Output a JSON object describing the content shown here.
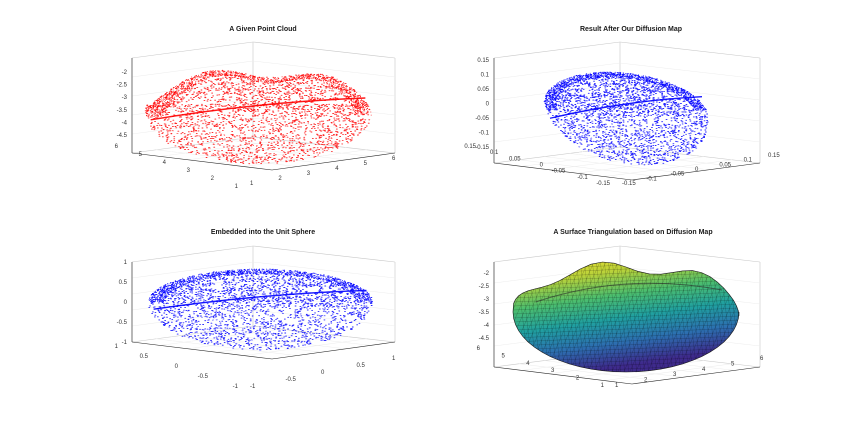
{
  "chart_data": [
    {
      "type": "scatter",
      "title": "A Given Point Cloud",
      "color": "#ff0000",
      "zticks": [
        "-2",
        "-2.5",
        "-3",
        "-3.5",
        "-4",
        "-4.5"
      ],
      "yticks": [
        "6",
        "5",
        "4",
        "3",
        "2",
        "1"
      ],
      "xticks": [
        "1",
        "2",
        "3",
        "4",
        "5",
        "6"
      ]
    },
    {
      "type": "scatter",
      "title": "Result After Our Diffusion Map",
      "color": "#0000ff",
      "zticks": [
        "0.15",
        "0.1",
        "0.05",
        "0",
        "-0.05",
        "-0.1",
        "-0.15"
      ],
      "yticks": [
        "0.15",
        "0.1",
        "0.05",
        "0",
        "-0.05",
        "-0.1",
        "-0.15"
      ],
      "xticks": [
        "-0.15",
        "-0.1",
        "-0.05",
        "0",
        "0.05",
        "0.1",
        "0.15"
      ]
    },
    {
      "type": "scatter",
      "title": "Embedded into the Unit Sphere",
      "color": "#0000ff",
      "zticks": [
        "1",
        "0.5",
        "0",
        "-0.5",
        "-1"
      ],
      "yticks": [
        "1",
        "0.5",
        "0",
        "-0.5",
        "-1"
      ],
      "xticks": [
        "-1",
        "-0.5",
        "0",
        "0.5",
        "1"
      ]
    },
    {
      "type": "surface",
      "title": "A Surface Triangulation based on Diffusion Map",
      "colormap": [
        "#3e2a8c",
        "#2c6fb0",
        "#20a0a0",
        "#4cbe6e",
        "#b9d23a",
        "#f2e030"
      ],
      "zticks": [
        "-2",
        "-2.5",
        "-3",
        "-3.5",
        "-4",
        "-4.5"
      ],
      "yticks": [
        "6",
        "5",
        "4",
        "3",
        "2",
        "1"
      ],
      "xticks": [
        "1",
        "2",
        "3",
        "4",
        "5",
        "6"
      ]
    }
  ]
}
